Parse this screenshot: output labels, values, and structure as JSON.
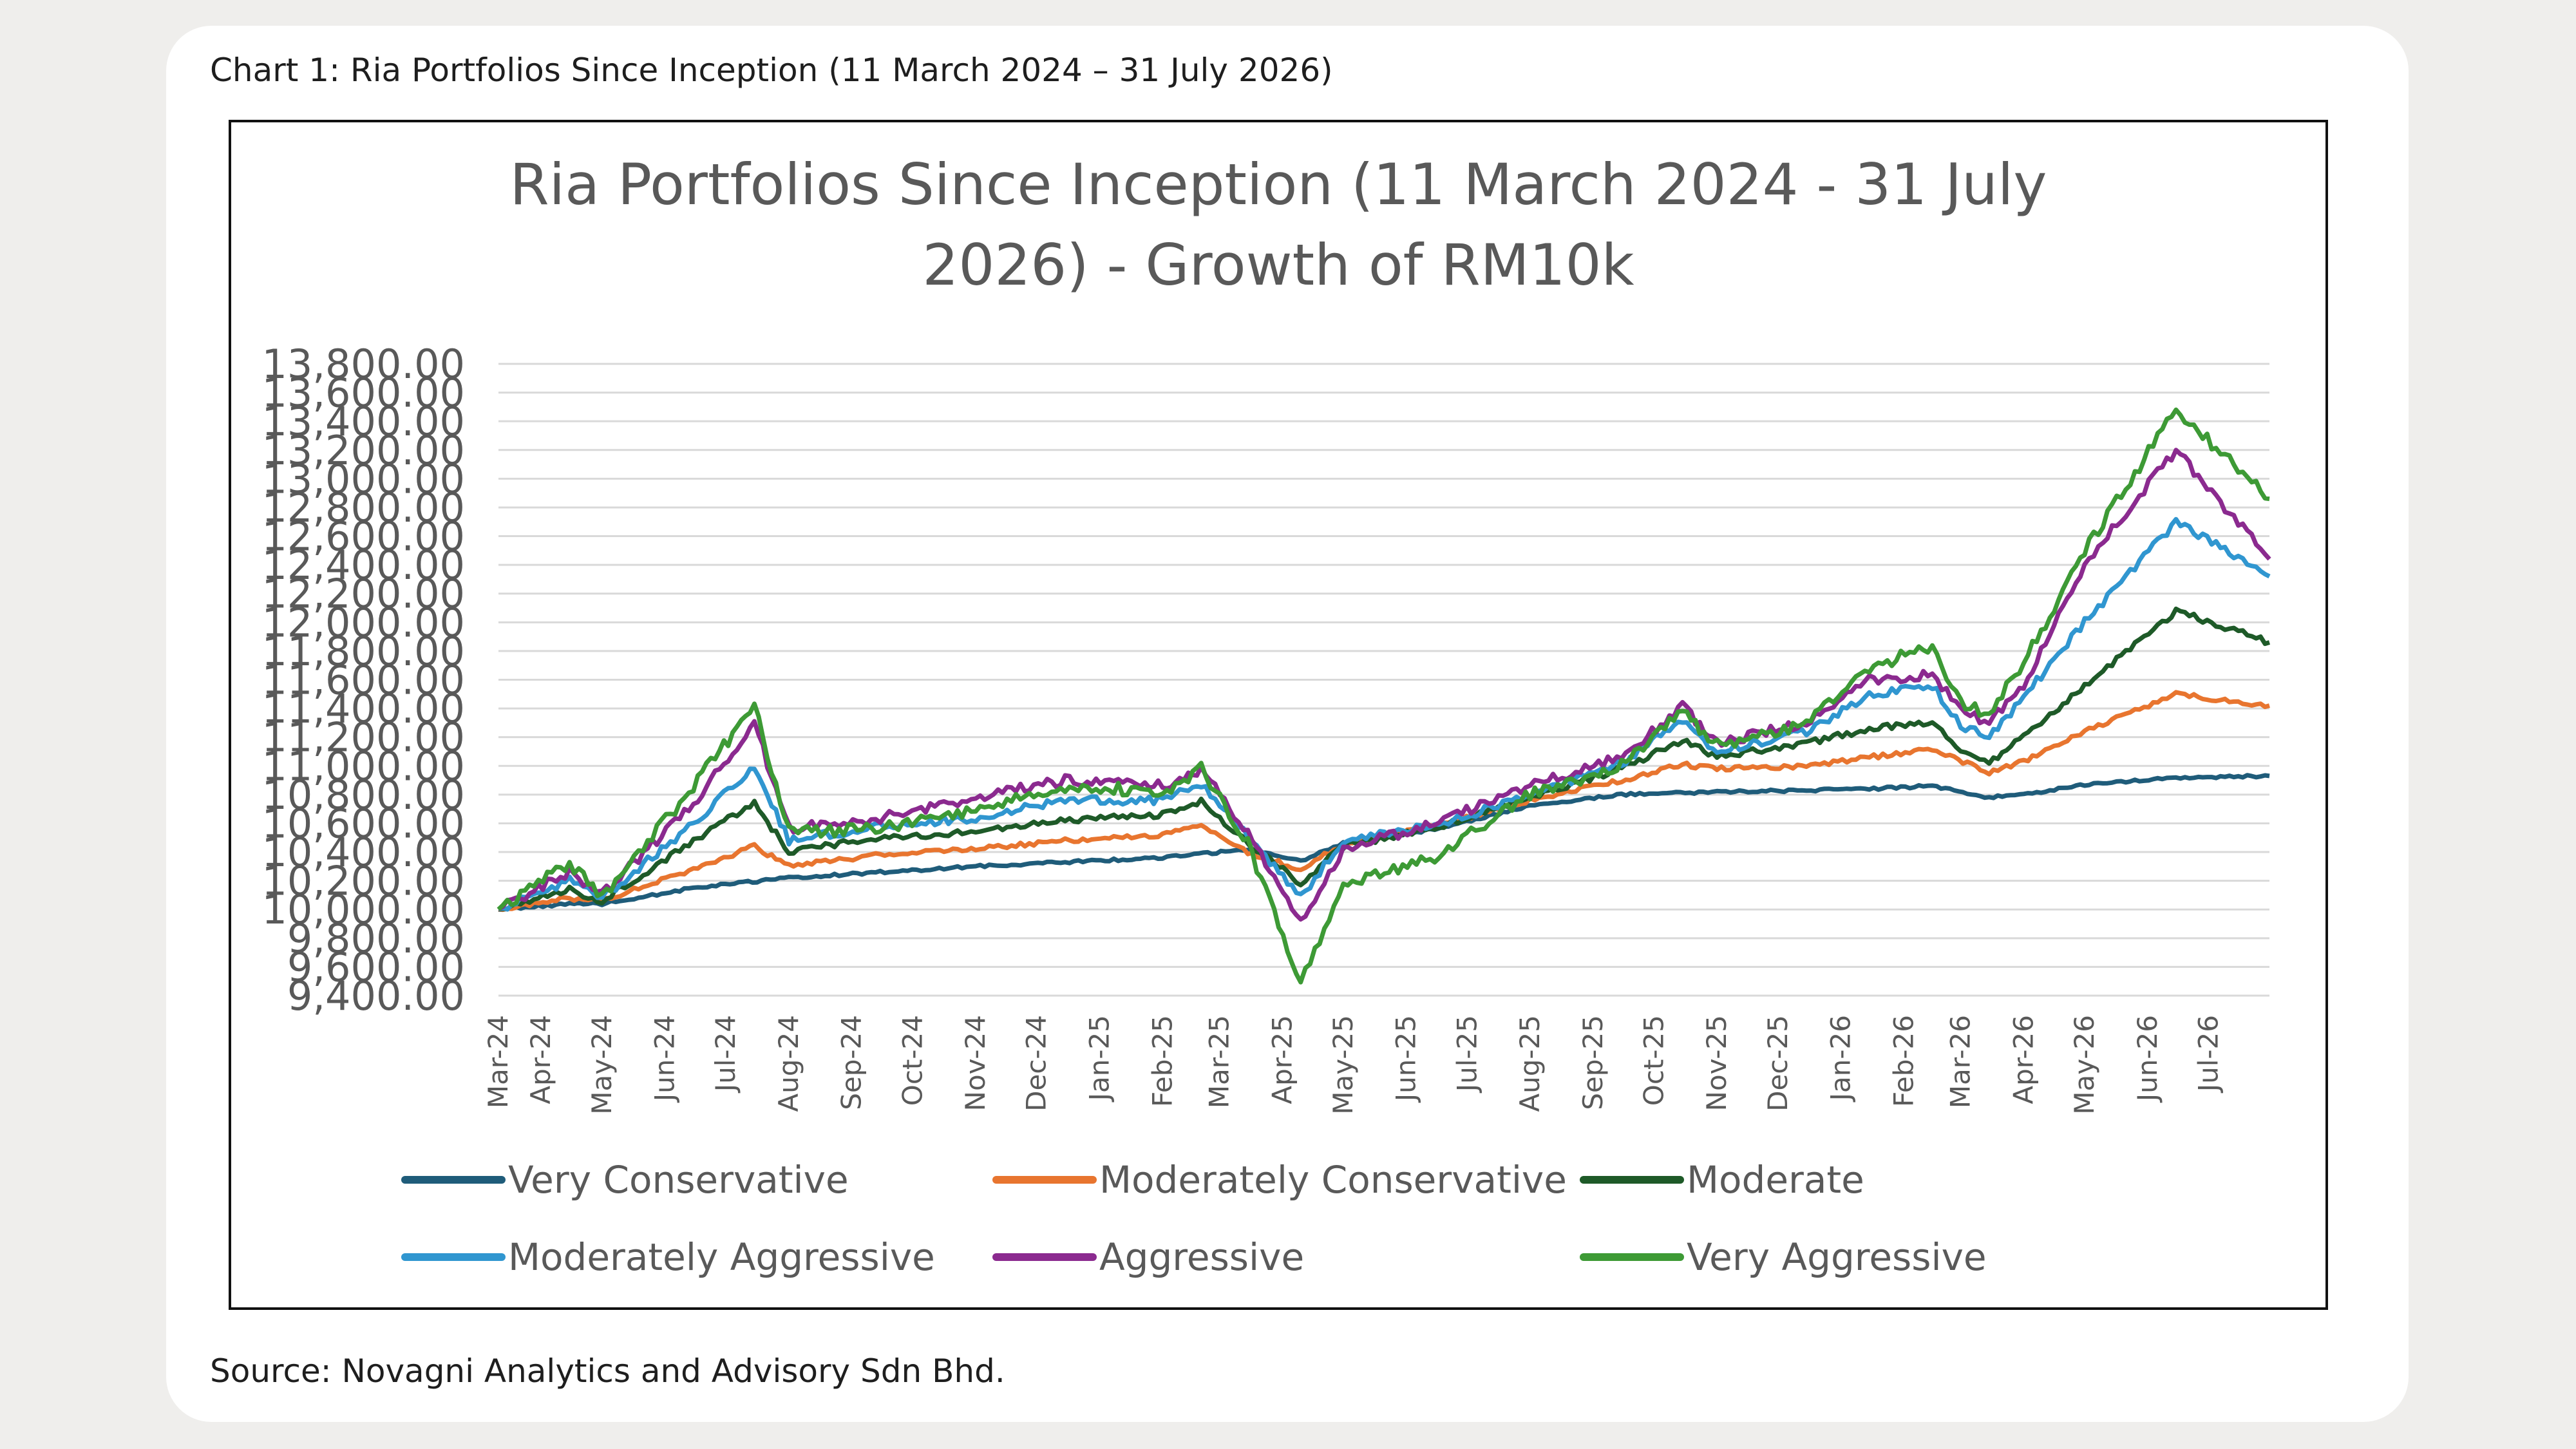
{
  "caption": "Chart 1: Ria Portfolios Since Inception (11 March 2024 – 31 July 2026)",
  "source": "Source: Novagni Analytics and Advisory Sdn Bhd.",
  "chart_data": {
    "type": "line",
    "title_line1": "Ria Portfolios Since Inception (11 March 2024 - 31 July",
    "title_line2": "2026) - Growth of RM10k",
    "y_ticks": [
      "9,400.00",
      "9,600.00",
      "9,800.00",
      "10,000.00",
      "10,200.00",
      "10,400.00",
      "10,600.00",
      "10,800.00",
      "11,000.00",
      "11,200.00",
      "11,400.00",
      "11,600.00",
      "11,800.00",
      "12,000.00",
      "12,200.00",
      "12,400.00",
      "12,600.00",
      "12,800.00",
      "13,000.00",
      "13,200.00",
      "13,400.00",
      "13,600.00",
      "13,800.00"
    ],
    "ylim": [
      9400,
      13800
    ],
    "x_labels": [
      "Mar-24",
      "Apr-24",
      "May-24",
      "Jun-24",
      "Jul-24",
      "Aug-24",
      "Sep-24",
      "Oct-24",
      "Nov-24",
      "Dec-24",
      "Jan-25",
      "Feb-25",
      "Mar-25",
      "Apr-25",
      "May-25",
      "Jun-25",
      "Jul-25",
      "Aug-25",
      "Sep-25",
      "Oct-25",
      "Nov-25",
      "Dec-25",
      "Jan-26",
      "Feb-26",
      "Mar-26",
      "Apr-26",
      "May-26",
      "Jun-26",
      "Jul-26"
    ],
    "x_range": [
      "2024-03-11",
      "2026-07-31"
    ],
    "grid": true,
    "legend_position": "bottom",
    "series": [
      {
        "name": "Very Conservative",
        "color": "#1f5c7a",
        "dates": [
          "2024-03-11",
          "2024-04-15",
          "2024-05-01",
          "2024-06-15",
          "2024-08-01",
          "2024-09-15",
          "2024-11-01",
          "2024-12-15",
          "2025-02-01",
          "2025-03-15",
          "2025-04-10",
          "2025-05-01",
          "2025-06-15",
          "2025-08-01",
          "2025-09-15",
          "2025-11-01",
          "2025-12-15",
          "2026-01-15",
          "2026-02-15",
          "2026-03-15",
          "2026-04-01",
          "2026-05-01",
          "2026-06-15",
          "2026-07-31"
        ],
        "values": [
          10000,
          10040,
          10040,
          10150,
          10220,
          10260,
          10300,
          10330,
          10360,
          10420,
          10340,
          10460,
          10560,
          10720,
          10800,
          10820,
          10830,
          10840,
          10860,
          10780,
          10800,
          10870,
          10920,
          10930
        ]
      },
      {
        "name": "Moderately Conservative",
        "color": "#e8752f",
        "dates": [
          "2024-03-11",
          "2024-04-15",
          "2024-05-01",
          "2024-06-15",
          "2024-07-15",
          "2024-08-01",
          "2024-09-15",
          "2024-11-01",
          "2024-12-15",
          "2025-02-01",
          "2025-02-20",
          "2025-03-15",
          "2025-04-10",
          "2025-05-01",
          "2025-06-15",
          "2025-08-01",
          "2025-09-15",
          "2025-10-15",
          "2025-11-01",
          "2025-12-15",
          "2026-01-15",
          "2026-02-15",
          "2026-03-15",
          "2026-04-01",
          "2026-05-01",
          "2026-06-15",
          "2026-07-31"
        ],
        "values": [
          10000,
          10080,
          10060,
          10280,
          10440,
          10300,
          10380,
          10420,
          10480,
          10520,
          10580,
          10400,
          10280,
          10460,
          10580,
          10760,
          10900,
          11010,
          10980,
          11000,
          11060,
          11120,
          10950,
          11030,
          11240,
          11500,
          11420
        ]
      },
      {
        "name": "Moderate",
        "color": "#1e5a28",
        "dates": [
          "2024-03-11",
          "2024-04-15",
          "2024-05-01",
          "2024-06-15",
          "2024-07-15",
          "2024-08-01",
          "2024-09-15",
          "2024-11-01",
          "2024-12-15",
          "2025-02-01",
          "2025-02-20",
          "2025-03-15",
          "2025-04-10",
          "2025-05-01",
          "2025-06-15",
          "2025-08-01",
          "2025-09-15",
          "2025-10-15",
          "2025-11-01",
          "2025-12-15",
          "2026-01-15",
          "2026-02-15",
          "2026-03-01",
          "2026-03-15",
          "2026-04-01",
          "2026-05-01",
          "2026-06-15",
          "2026-07-31"
        ],
        "values": [
          10000,
          10140,
          10060,
          10480,
          10740,
          10400,
          10500,
          10540,
          10620,
          10660,
          10760,
          10460,
          10180,
          10440,
          10560,
          10780,
          10980,
          11180,
          11060,
          11160,
          11260,
          11300,
          11120,
          11020,
          11200,
          11560,
          12080,
          11860
        ]
      },
      {
        "name": "Moderately Aggressive",
        "color": "#3096d0",
        "dates": [
          "2024-03-11",
          "2024-04-15",
          "2024-05-01",
          "2024-06-15",
          "2024-07-15",
          "2024-08-01",
          "2024-09-15",
          "2024-11-01",
          "2024-12-15",
          "2025-02-01",
          "2025-02-20",
          "2025-03-15",
          "2025-04-10",
          "2025-05-01",
          "2025-06-15",
          "2025-08-01",
          "2025-09-15",
          "2025-10-15",
          "2025-11-01",
          "2025-12-15",
          "2026-01-15",
          "2026-02-15",
          "2026-03-01",
          "2026-03-15",
          "2026-04-01",
          "2026-05-01",
          "2026-06-15",
          "2026-07-31"
        ],
        "values": [
          10000,
          10200,
          10080,
          10600,
          11000,
          10480,
          10580,
          10640,
          10760,
          10760,
          10880,
          10520,
          10080,
          10480,
          10580,
          10800,
          11020,
          11320,
          11100,
          11240,
          11500,
          11560,
          11280,
          11200,
          11480,
          12000,
          12700,
          12320
        ]
      },
      {
        "name": "Aggressive",
        "color": "#8b2a8f",
        "dates": [
          "2024-03-11",
          "2024-04-15",
          "2024-05-01",
          "2024-06-15",
          "2024-07-15",
          "2024-08-01",
          "2024-09-15",
          "2024-11-01",
          "2024-12-15",
          "2025-02-01",
          "2025-02-20",
          "2025-03-15",
          "2025-04-10",
          "2025-05-01",
          "2025-06-15",
          "2025-08-01",
          "2025-09-15",
          "2025-10-15",
          "2025-11-01",
          "2025-12-15",
          "2026-01-15",
          "2026-02-15",
          "2026-03-01",
          "2026-03-15",
          "2026-04-01",
          "2026-05-01",
          "2026-06-15",
          "2026-07-31"
        ],
        "values": [
          10000,
          10260,
          10100,
          10740,
          11300,
          10560,
          10640,
          10780,
          10900,
          10860,
          10980,
          10540,
          9920,
          10420,
          10600,
          10860,
          11060,
          11420,
          11160,
          11300,
          11600,
          11640,
          11380,
          11300,
          11560,
          12400,
          13200,
          12440
        ]
      },
      {
        "name": "Very Aggressive",
        "color": "#3d9a35",
        "dates": [
          "2024-03-11",
          "2024-04-15",
          "2024-05-01",
          "2024-06-15",
          "2024-07-15",
          "2024-08-01",
          "2024-09-15",
          "2024-11-01",
          "2024-12-15",
          "2025-02-01",
          "2025-02-20",
          "2025-03-15",
          "2025-04-10",
          "2025-05-01",
          "2025-06-15",
          "2025-08-01",
          "2025-09-15",
          "2025-10-15",
          "2025-11-01",
          "2025-12-15",
          "2026-01-15",
          "2026-02-15",
          "2026-03-01",
          "2026-03-15",
          "2026-04-01",
          "2026-05-01",
          "2026-06-15",
          "2026-07-31"
        ],
        "values": [
          10000,
          10320,
          10080,
          10860,
          11420,
          10540,
          10560,
          10700,
          10860,
          10820,
          10980,
          10460,
          9500,
          10180,
          10360,
          10800,
          11000,
          11380,
          11140,
          11300,
          11680,
          11840,
          11440,
          11360,
          11720,
          12500,
          13480,
          12860
        ]
      }
    ]
  }
}
